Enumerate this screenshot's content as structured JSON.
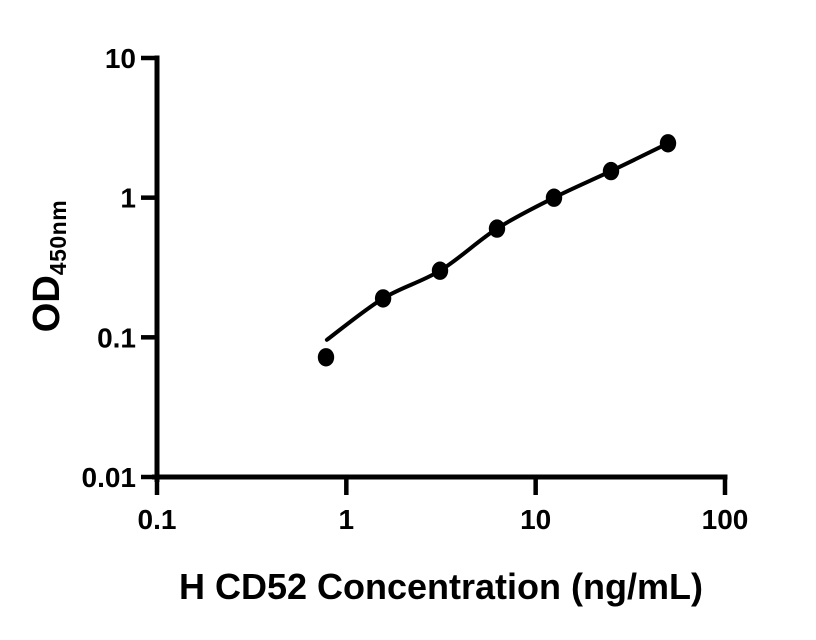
{
  "figure": {
    "background_color": "#ffffff",
    "foreground_color": "#000000"
  },
  "chart_data": {
    "type": "scatter",
    "subtype": "elisa-standard-curve-with-fit-line",
    "title": "",
    "xlabel": "H CD52 Concentration (ng/mL)",
    "ylabel_main": "OD",
    "ylabel_sub": "450nm",
    "x_scale": "log10",
    "y_scale": "log10",
    "xlim": [
      0.1,
      100
    ],
    "ylim": [
      0.01,
      10
    ],
    "x_ticks": [
      "0.1",
      "1",
      "10",
      "100"
    ],
    "y_ticks": [
      "0.01",
      "0.1",
      "1",
      "10"
    ],
    "grid": false,
    "legend": false,
    "marker_color": "#000000",
    "line_color": "#000000",
    "series": [
      {
        "marker": "filled-circle",
        "points": [
          {
            "x": 0.781,
            "y": 0.072
          },
          {
            "x": 1.563,
            "y": 0.19
          },
          {
            "x": 3.125,
            "y": 0.3
          },
          {
            "x": 6.25,
            "y": 0.6
          },
          {
            "x": 12.5,
            "y": 1.0
          },
          {
            "x": 25,
            "y": 1.55
          },
          {
            "x": 50,
            "y": 2.45
          }
        ]
      }
    ],
    "fit_curve": {
      "points": [
        {
          "x": 0.79,
          "y": 0.096
        },
        {
          "x": 1.563,
          "y": 0.19
        },
        {
          "x": 3.125,
          "y": 0.3
        },
        {
          "x": 6.25,
          "y": 0.6
        },
        {
          "x": 12.5,
          "y": 1.0
        },
        {
          "x": 25,
          "y": 1.55
        },
        {
          "x": 50,
          "y": 2.45
        }
      ]
    }
  }
}
